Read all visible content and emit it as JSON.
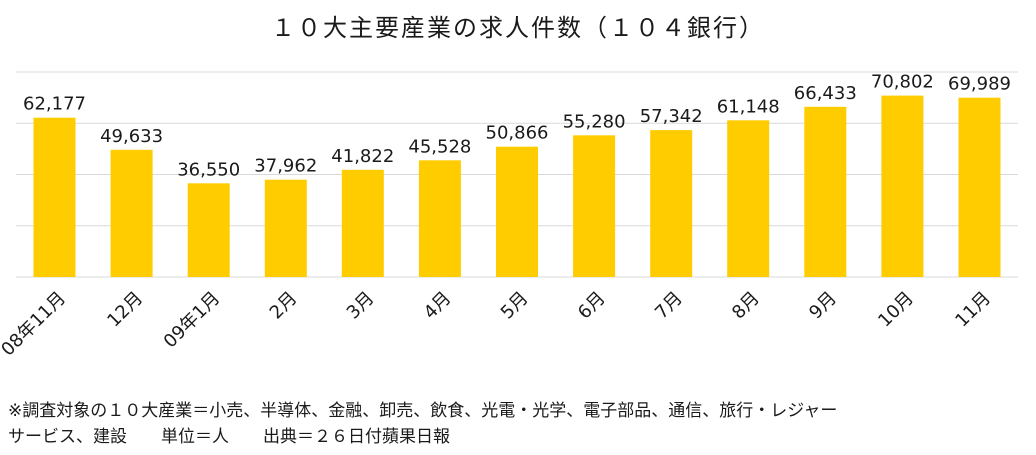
{
  "chart_data": {
    "type": "bar",
    "title": "１０大主要産業の求人件数（１０４銀行）",
    "categories": [
      "08年11月",
      "12月",
      "09年1月",
      "2月",
      "3月",
      "4月",
      "5月",
      "6月",
      "7月",
      "8月",
      "9月",
      "10月",
      "11月"
    ],
    "values": [
      62177,
      49633,
      36550,
      37962,
      41822,
      45528,
      50866,
      55280,
      57342,
      61148,
      66433,
      70802,
      69989
    ],
    "value_labels": [
      "62,177",
      "49,633",
      "36,550",
      "37,962",
      "41,822",
      "45,528",
      "50,866",
      "55,280",
      "57,342",
      "61,148",
      "66,433",
      "70,802",
      "69,989"
    ],
    "ylim": [
      0,
      80000
    ],
    "ytick_step": 20000,
    "y_tick_labels_shown": false,
    "grid": true,
    "bar_color": "#FFCC00",
    "grid_color": "#D9D9D9"
  },
  "footnote": {
    "line1": "※調査対象の１０大産業＝小売、半導体、金融、卸売、飲食、光電・光学、電子部品、通信、旅行・レジャー",
    "line2_a": "サービス、建設",
    "line2_b": "単位＝人",
    "line2_c": "出典＝２６日付蘋果日報"
  }
}
